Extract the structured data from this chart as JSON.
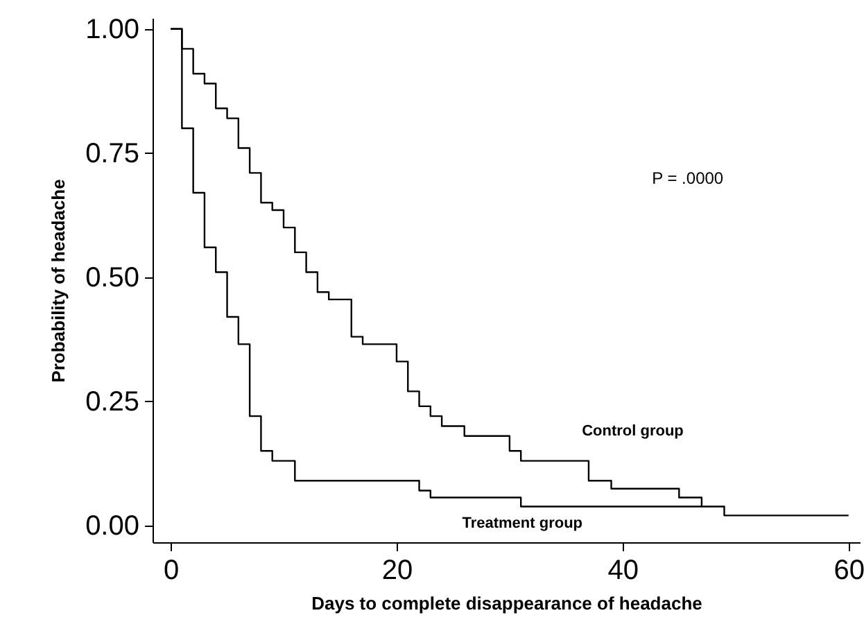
{
  "chart_data": {
    "type": "step",
    "xlabel": "Days to complete disappearance of headache",
    "ylabel": "Probability of headache",
    "annotations": [
      "P = .0000"
    ],
    "xlim": [
      -1.6,
      61
    ],
    "xticks": [
      0,
      20,
      40,
      60
    ],
    "ylim": [
      -0.034,
      1.022
    ],
    "yticks": [
      {
        "value": 0,
        "label": "0.00"
      },
      {
        "value": 0.25,
        "label": "0.25"
      },
      {
        "value": 0.5,
        "label": "0.50"
      },
      {
        "value": 0.75,
        "label": "0.75"
      },
      {
        "value": 1,
        "label": "1.00"
      }
    ],
    "grid": false,
    "line_style": "solid",
    "series": [
      {
        "name": "Control group",
        "color": "#000000",
        "x": [
          0,
          1,
          2,
          3,
          4,
          5,
          6,
          7,
          8,
          9,
          10,
          11,
          12,
          13,
          14,
          16,
          17,
          20,
          21,
          22,
          23,
          24,
          26,
          30,
          31,
          37,
          39,
          45,
          47,
          49,
          60
        ],
        "values": [
          1,
          0.96,
          0.91,
          0.89,
          0.84,
          0.82,
          0.76,
          0.71,
          0.65,
          0.635,
          0.6,
          0.55,
          0.51,
          0.47,
          0.455,
          0.38,
          0.365,
          0.33,
          0.27,
          0.24,
          0.22,
          0.2,
          0.18,
          0.15,
          0.13,
          0.09,
          0.074,
          0.056,
          0.038,
          0.02,
          0.02
        ]
      },
      {
        "name": "Treatment group",
        "color": "#000000",
        "x": [
          0,
          1,
          2,
          3,
          4,
          5,
          6,
          7,
          8,
          9,
          11,
          22,
          23,
          31,
          47
        ],
        "values": [
          1,
          0.8,
          0.67,
          0.56,
          0.51,
          0.42,
          0.365,
          0.22,
          0.15,
          0.13,
          0.09,
          0.07,
          0.056,
          0.038,
          0.038
        ]
      }
    ]
  }
}
